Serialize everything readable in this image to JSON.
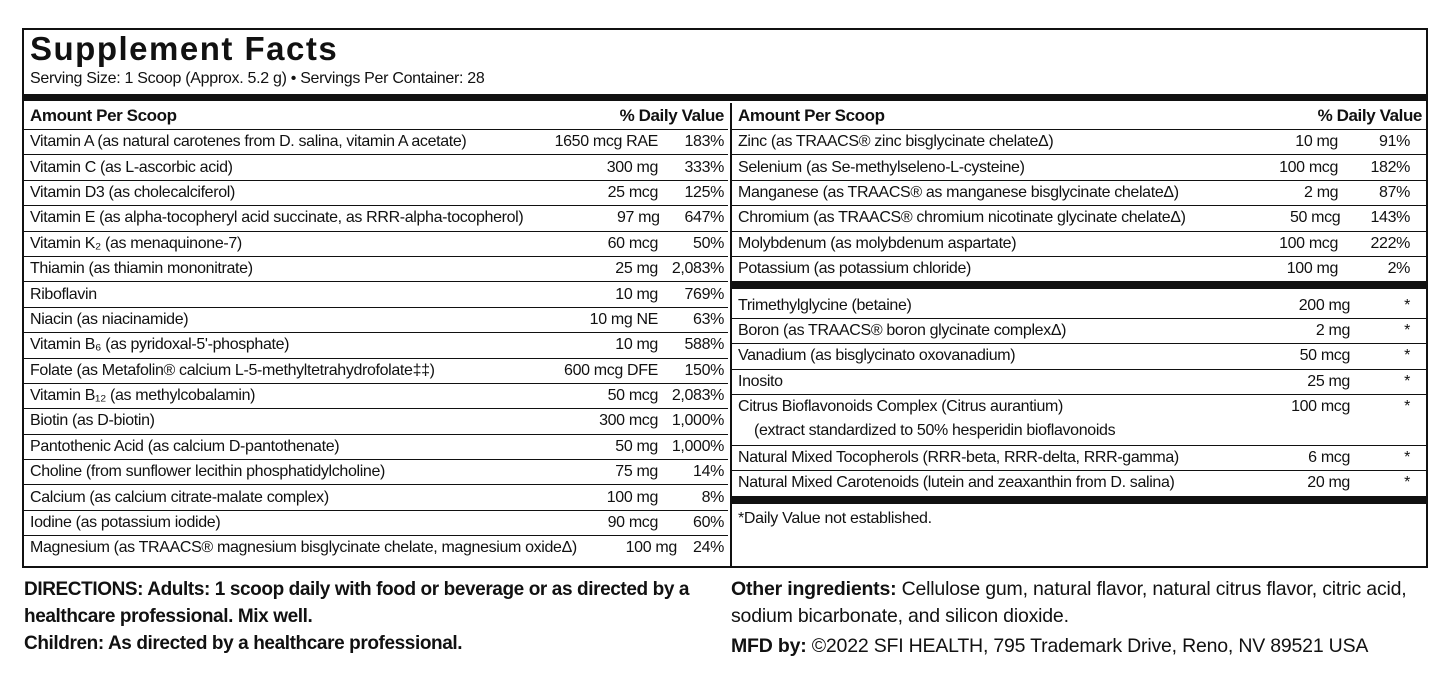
{
  "title": "Supplement Facts",
  "serving": "Serving Size: 1 Scoop (Approx. 5.2 g) • Servings Per Container: 28",
  "left": {
    "header": {
      "amount": "Amount Per Scoop",
      "dv": "% Daily Value"
    },
    "rows": [
      {
        "name": "Vitamin A (as natural carotenes from D. salina, vitamin A acetate)",
        "amount": "1650 mcg RAE",
        "dv": "183%"
      },
      {
        "name": "Vitamin C (as L-ascorbic acid)",
        "amount": "300 mg",
        "dv": "333%"
      },
      {
        "name": "Vitamin D3 (as cholecalciferol)",
        "amount": "25 mcg",
        "dv": "125%"
      },
      {
        "name": "Vitamin E (as alpha-tocopheryl acid succinate, as RRR-alpha-tocopherol)",
        "amount": "97 mg",
        "dv": "647%"
      },
      {
        "name": "Vitamin K₂ (as menaquinone-7)",
        "amount": "60 mcg",
        "dv": "50%"
      },
      {
        "name": "Thiamin (as thiamin mononitrate)",
        "amount": "25 mg",
        "dv": "2,083%"
      },
      {
        "name": "Riboflavin",
        "amount": "10 mg",
        "dv": "769%"
      },
      {
        "name": "Niacin (as niacinamide)",
        "amount": "10 mg NE",
        "dv": "63%"
      },
      {
        "name": "Vitamin B₆ (as pyridoxal-5'-phosphate)",
        "amount": "10 mg",
        "dv": "588%"
      },
      {
        "name": "Folate (as Metafolin® calcium L-5-methyltetrahydrofolate‡‡)",
        "amount": "600 mcg DFE",
        "dv": "150%"
      },
      {
        "name": "Vitamin B₁₂ (as methylcobalamin)",
        "amount": "50 mcg",
        "dv": "2,083%"
      },
      {
        "name": "Biotin (as D-biotin)",
        "amount": "300 mcg",
        "dv": "1,000%"
      },
      {
        "name": "Pantothenic Acid (as calcium D-pantothenate)",
        "amount": "50 mg",
        "dv": "1,000%"
      },
      {
        "name": "Choline (from sunflower lecithin phosphatidylcholine)",
        "amount": "75 mg",
        "dv": "14%"
      },
      {
        "name": "Calcium (as calcium citrate-malate complex)",
        "amount": "100 mg",
        "dv": "8%"
      },
      {
        "name": "Iodine (as potassium iodide)",
        "amount": "90 mcg",
        "dv": "60%"
      },
      {
        "name": "Magnesium (as TRAACS® magnesium bisglycinate chelate, magnesium oxideΔ)",
        "amount": "100 mg",
        "dv": "24%"
      }
    ]
  },
  "right": {
    "header": {
      "amount": "Amount Per Scoop",
      "dv": "% Daily Value"
    },
    "groups": [
      [
        {
          "name": "Zinc  (as TRAACS® zinc bisglycinate chelateΔ)",
          "amount": "10 mg",
          "dv": "91%"
        },
        {
          "name": "Selenium (as Se-methylseleno-L-cysteine)",
          "amount": "100 mcg",
          "dv": "182%"
        },
        {
          "name": "Manganese (as TRAACS® as manganese bisglycinate chelateΔ)",
          "amount": "2 mg",
          "dv": "87%"
        },
        {
          "name": "Chromium (as TRAACS® chromium nicotinate glycinate chelateΔ)",
          "amount": "50 mcg",
          "dv": "143%"
        },
        {
          "name": "Molybdenum (as molybdenum aspartate)",
          "amount": "100 mcg",
          "dv": "222%"
        },
        {
          "name": "Potassium (as potassium chloride)",
          "amount": "100 mg",
          "dv": "2%"
        }
      ],
      [
        {
          "name": "Trimethylglycine (betaine)",
          "amount": "200 mg",
          "dv": "*"
        },
        {
          "name": "Boron (as TRAACS® boron glycinate complexΔ)",
          "amount": "2 mg",
          "dv": "*"
        },
        {
          "name": "Vanadium (as bisglycinato oxovanadium)",
          "amount": "50 mcg",
          "dv": "*"
        },
        {
          "name": "Inosito",
          "amount": "25 mg",
          "dv": "*"
        },
        {
          "name": "Citrus Bioflavonoids Complex (Citrus aurantium)",
          "note": "(extract standardized to 50% hesperidin bioflavonoids",
          "amount": "100 mcg",
          "dv": "*"
        },
        {
          "name": "Natural Mixed Tocopherols (RRR-beta, RRR-delta, RRR-gamma)",
          "amount": "6 mcg",
          "dv": "*"
        },
        {
          "name": "Natural Mixed Carotenoids (lutein and zeaxanthin from D. salina)",
          "amount": "20 mg",
          "dv": "*"
        }
      ]
    ],
    "footnote": "*Daily Value not established."
  },
  "directions": [
    "DIRECTIONS: Adults: 1 scoop daily with food or beverage or as directed by a healthcare professional. Mix well.",
    "Children: As directed by a healthcare professional."
  ],
  "other": {
    "label": "Other ingredients:",
    "text": " Cellulose gum, natural flavor, natural citrus flavor, citric acid, sodium bicarbonate, and silicon dioxide."
  },
  "mfd": {
    "label": "MFD by:",
    "text": " ©2022 SFI HEALTH, 795 Trademark Drive, Reno, NV 89521 USA"
  }
}
